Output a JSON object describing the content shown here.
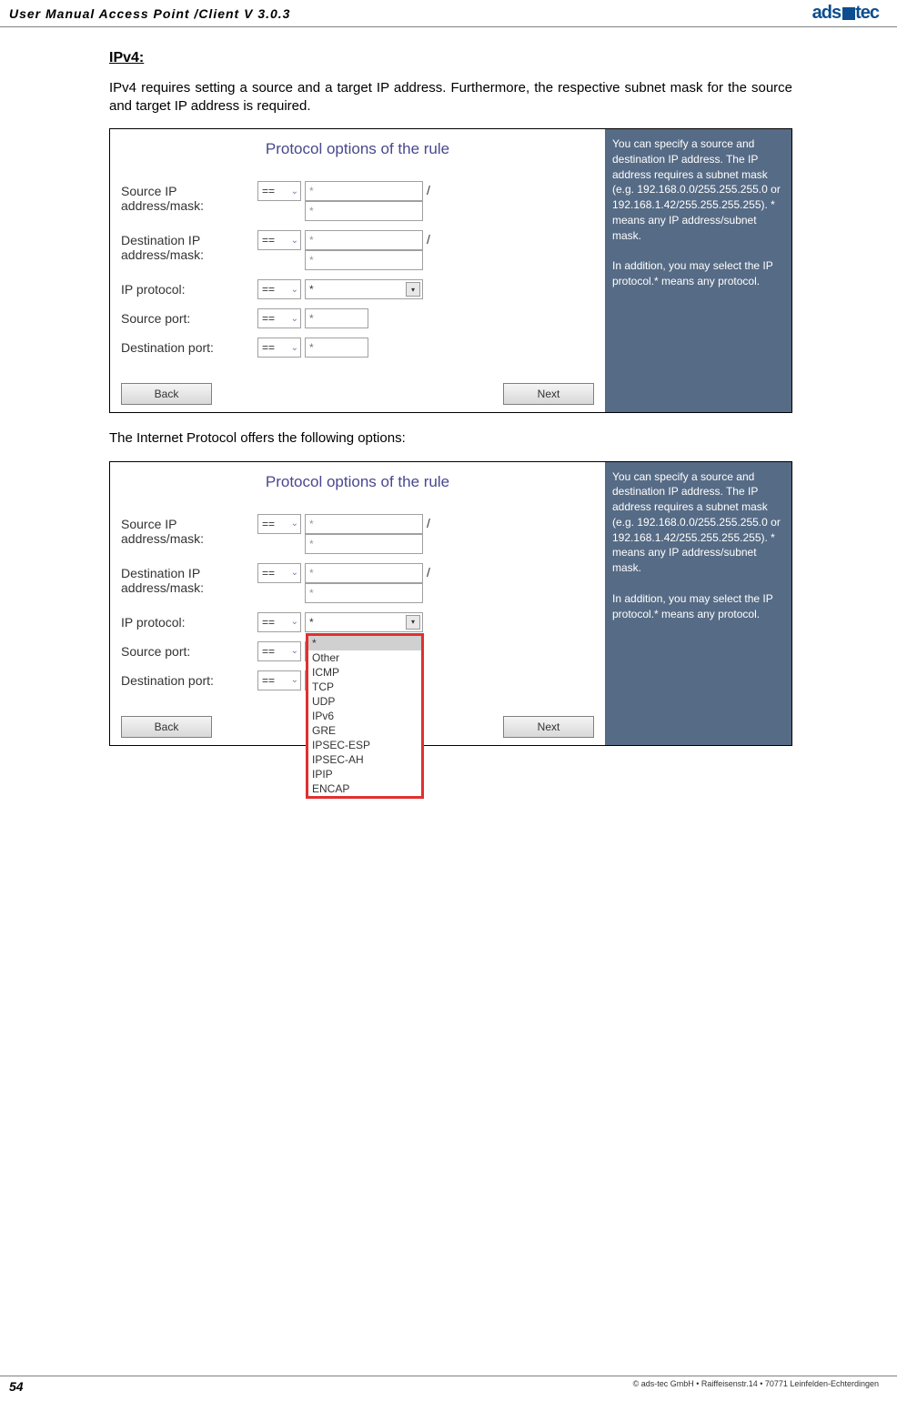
{
  "header": {
    "title": "User Manual Access Point /Client V 3.0.3",
    "logo_text": "ads",
    "logo_suffix": "tec"
  },
  "section": {
    "title": "IPv4:",
    "intro": "IPv4 requires setting a source and a target IP address. Furthermore, the respective subnet mask for the source and target IP address is required.",
    "middle": "The Internet Protocol offers the following options:"
  },
  "panel": {
    "title": "Protocol options of the rule",
    "labels": {
      "source_ip": "Source IP address/mask:",
      "dest_ip": "Destination IP address/mask:",
      "ip_protocol": "IP protocol:",
      "source_port": "Source port:",
      "dest_port": "Destination port:"
    },
    "eq": "==",
    "star": "*",
    "slash": "/",
    "buttons": {
      "back": "Back",
      "next": "Next"
    },
    "help": {
      "p1": "You can specify a source and destination IP address. The IP address requires a subnet mask (e.g. 192.168.0.0/255.255.255.0 or 192.168.1.42/255.255.255.255). * means any IP address/subnet mask.",
      "p2": "In addition, you may select the IP protocol.* means any protocol."
    }
  },
  "dropdown": {
    "options": [
      "*",
      "Other",
      "ICMP",
      "TCP",
      "UDP",
      "IPv6",
      "GRE",
      "IPSEC-ESP",
      "IPSEC-AH",
      "IPIP",
      "ENCAP"
    ]
  },
  "footer": {
    "page": "54",
    "copyright": "© ads-tec GmbH • Raiffeisenstr.14 • 70771 Leinfelden-Echterdingen"
  }
}
